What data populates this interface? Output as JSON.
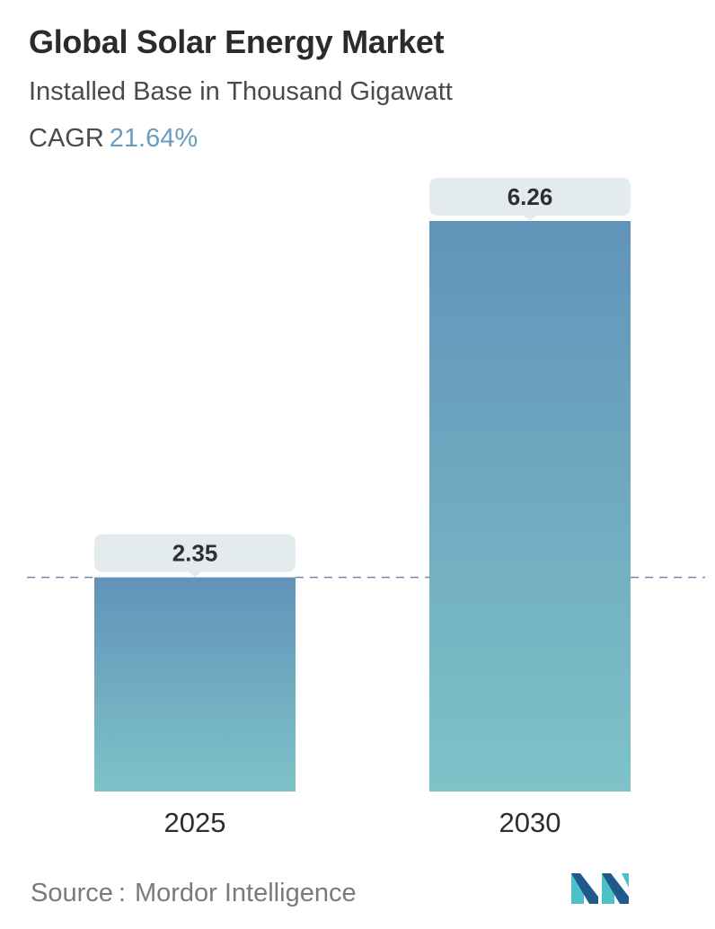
{
  "header": {
    "title": "Global Solar Energy Market",
    "subtitle": "Installed Base in Thousand Gigawatt",
    "cagr_label": "CAGR",
    "cagr_value": "21.64%"
  },
  "footer": {
    "source_label": "Source",
    "source_separator": ":",
    "source_name": "Mordor Intelligence",
    "logo_icon": "mordor-intelligence-logo-icon"
  },
  "colors": {
    "bar_top": "#6193b9",
    "bar_bottom": "#7ec3c8",
    "label_box": "#e3ebee",
    "reference_line": "#6a8fae",
    "cagr_accent": "#6a9cc0",
    "logo_dark": "#1f5a8a",
    "logo_light": "#4fc0c8"
  },
  "chart_data": {
    "type": "bar",
    "title": "Global Solar Energy Market",
    "subtitle": "Installed Base in Thousand Gigawatt",
    "categories": [
      "2025",
      "2030"
    ],
    "values": [
      2.35,
      6.26
    ],
    "value_labels": [
      "2.35",
      "6.26"
    ],
    "xlabel": "",
    "ylabel": "",
    "ylim": [
      0,
      6.26
    ],
    "grid": false,
    "legend": "none",
    "reference_line": {
      "value": 2.35,
      "style": "dashed"
    }
  }
}
